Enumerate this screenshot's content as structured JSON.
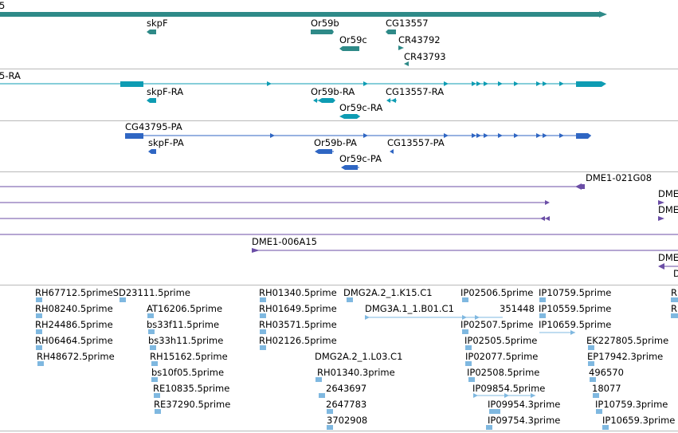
{
  "colors": {
    "gene": "#2e8a88",
    "transcript": "#0e9cb3",
    "protein": "#2f66c3",
    "clone": "#6b4ea6",
    "est": "#7fb8e0",
    "separator": "#b9b9b9"
  },
  "gene_track": {
    "top_label_fragment": "5",
    "labels": [
      "skpF",
      "Or59b",
      "Or59c",
      "CG13557",
      "CR43792",
      "CR43793"
    ]
  },
  "transcript_track": {
    "top_label_fragment": "5-RA",
    "labels": [
      "skpF-RA",
      "Or59b-RA",
      "Or59c-RA",
      "CG13557-RA"
    ]
  },
  "protein_track": {
    "labels": [
      "CG43795-PA",
      "skpF-PA",
      "Or59b-PA",
      "CG13557-PA",
      "Or59c-PA"
    ]
  },
  "clone_track": {
    "labels": [
      "DME1-021G08",
      "DME",
      "DME",
      "DME1-006A15",
      "DME",
      "D"
    ]
  },
  "est_track": {
    "labels": [
      "RH67712.5primeSD23111.5prime",
      "RH08240.5prime",
      "RH24486.5prime",
      "RH06464.5prime",
      "RH48672.5prime",
      "AT16206.5prime",
      "bs33f11.5prime",
      "bs33h11.5prime",
      "RH15162.5prime",
      "bs10f05.5prime",
      "RE10835.5prime",
      "RE37290.5prime",
      "RH01340.5prime",
      "RH01649.5prime",
      "RH03571.5prime",
      "RH02126.5prime",
      "DMG2A.2_1.K15.C1",
      "DMG3A.1_1.B01.C1",
      "DMG2A.2_1.L03.C1",
      "RH01340.3prime",
      "2643697",
      "2647783",
      "3702908",
      "IP02506.5prime",
      "351448",
      "IP02507.5prime",
      "IP02505.5prime",
      "IP02077.5prime",
      "IP02508.5prime",
      "IP09854.5prime",
      "IP09954.3prime",
      "IP09754.3prime",
      "IP10759.5prime",
      "IP10559.5prime",
      "IP10659.5prime",
      "EK227805.5prime",
      "EP17942.3prime",
      "496570",
      "18077",
      "IP10759.3prime",
      "IP10659.3prime",
      "R",
      "R"
    ]
  }
}
